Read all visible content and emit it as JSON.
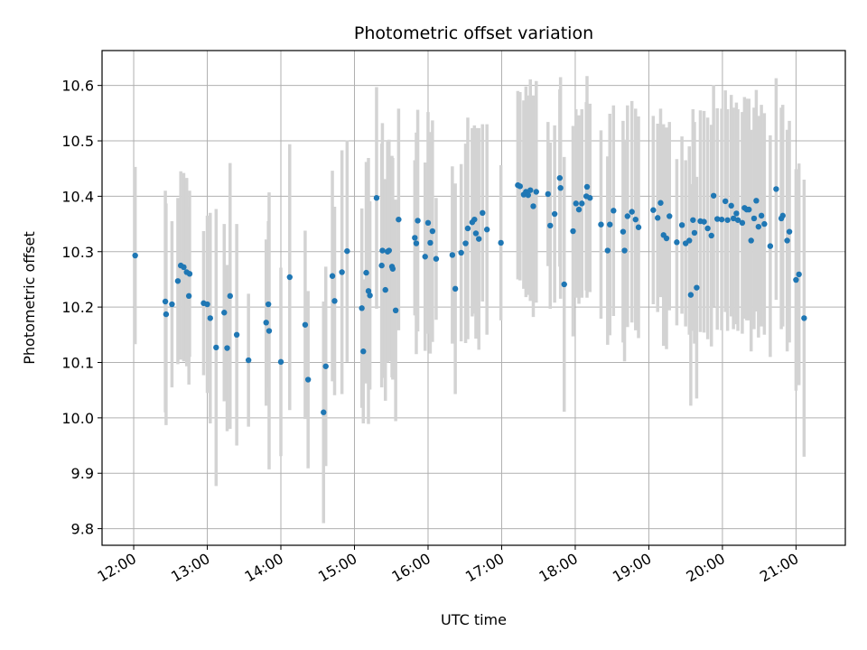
{
  "chart_data": {
    "type": "scatter",
    "title": "Photometric offset variation",
    "xlabel": "UTC time",
    "ylabel": "Photometric offset",
    "x_unit": "hours (UTC)",
    "xlim": [
      11.57,
      21.67
    ],
    "ylim": [
      9.77,
      10.663
    ],
    "grid": true,
    "colors": {
      "point": "#1f77b4",
      "errorbar": "#d3d3d3",
      "grid": "#b0b0b0"
    },
    "x_ticks": [
      {
        "value": 12,
        "label": "12:00"
      },
      {
        "value": 13,
        "label": "13:00"
      },
      {
        "value": 14,
        "label": "14:00"
      },
      {
        "value": 15,
        "label": "15:00"
      },
      {
        "value": 16,
        "label": "16:00"
      },
      {
        "value": 17,
        "label": "17:00"
      },
      {
        "value": 18,
        "label": "18:00"
      },
      {
        "value": 19,
        "label": "19:00"
      },
      {
        "value": 20,
        "label": "20:00"
      },
      {
        "value": 21,
        "label": "21:00"
      }
    ],
    "y_ticks": [
      {
        "value": 9.8,
        "label": "9.8"
      },
      {
        "value": 9.9,
        "label": "9.9"
      },
      {
        "value": 10.0,
        "label": "10.0"
      },
      {
        "value": 10.1,
        "label": "10.1"
      },
      {
        "value": 10.2,
        "label": "10.2"
      },
      {
        "value": 10.3,
        "label": "10.3"
      },
      {
        "value": 10.4,
        "label": "10.4"
      },
      {
        "value": 10.5,
        "label": "10.5"
      },
      {
        "value": 10.6,
        "label": "10.6"
      }
    ],
    "points": [
      [
        12.02,
        10.293,
        0.16
      ],
      [
        12.43,
        10.21,
        0.2
      ],
      [
        12.44,
        10.187,
        0.2
      ],
      [
        12.52,
        10.205,
        0.15
      ],
      [
        12.6,
        10.247,
        0.15
      ],
      [
        12.64,
        10.275,
        0.17
      ],
      [
        12.68,
        10.272,
        0.17
      ],
      [
        12.72,
        10.263,
        0.17
      ],
      [
        12.75,
        10.22,
        0.16
      ],
      [
        12.76,
        10.26,
        0.15
      ],
      [
        12.95,
        10.207,
        0.13
      ],
      [
        13.0,
        10.205,
        0.16
      ],
      [
        13.04,
        10.18,
        0.19
      ],
      [
        13.12,
        10.127,
        0.25
      ],
      [
        13.23,
        10.19,
        0.16
      ],
      [
        13.27,
        10.126,
        0.15
      ],
      [
        13.31,
        10.22,
        0.24
      ],
      [
        13.4,
        10.15,
        0.2
      ],
      [
        13.56,
        10.104,
        0.12
      ],
      [
        13.8,
        10.172,
        0.15
      ],
      [
        13.83,
        10.205,
        0.15
      ],
      [
        13.84,
        10.157,
        0.25
      ],
      [
        14.0,
        10.101,
        0.17
      ],
      [
        14.12,
        10.254,
        0.24
      ],
      [
        14.33,
        10.168,
        0.17
      ],
      [
        14.37,
        10.069,
        0.16
      ],
      [
        14.58,
        10.01,
        0.2
      ],
      [
        14.61,
        10.093,
        0.18
      ],
      [
        14.7,
        10.256,
        0.19
      ],
      [
        14.73,
        10.211,
        0.17
      ],
      [
        14.83,
        10.263,
        0.22
      ],
      [
        14.9,
        10.301,
        0.2
      ],
      [
        15.1,
        10.198,
        0.18
      ],
      [
        15.12,
        10.12,
        0.13
      ],
      [
        15.16,
        10.262,
        0.2
      ],
      [
        15.19,
        10.229,
        0.24
      ],
      [
        15.21,
        10.221,
        0.17
      ],
      [
        15.3,
        10.397,
        0.2
      ],
      [
        15.37,
        10.275,
        0.22
      ],
      [
        15.38,
        10.302,
        0.23
      ],
      [
        15.42,
        10.231,
        0.2
      ],
      [
        15.45,
        10.3,
        0.2
      ],
      [
        15.47,
        10.302,
        0.2
      ],
      [
        15.51,
        10.273,
        0.2
      ],
      [
        15.52,
        10.269,
        0.2
      ],
      [
        15.56,
        10.194,
        0.2
      ],
      [
        15.6,
        10.358,
        0.2
      ],
      [
        15.82,
        10.325,
        0.14
      ],
      [
        15.84,
        10.315,
        0.2
      ],
      [
        15.86,
        10.356,
        0.2
      ],
      [
        15.96,
        10.291,
        0.17
      ],
      [
        16.0,
        10.352,
        0.2
      ],
      [
        16.03,
        10.316,
        0.2
      ],
      [
        16.06,
        10.337,
        0.2
      ],
      [
        16.11,
        10.287,
        0.11
      ],
      [
        16.33,
        10.294,
        0.16
      ],
      [
        16.37,
        10.233,
        0.19
      ],
      [
        16.45,
        10.298,
        0.16
      ],
      [
        16.51,
        10.315,
        0.18
      ],
      [
        16.54,
        10.342,
        0.2
      ],
      [
        16.6,
        10.353,
        0.17
      ],
      [
        16.63,
        10.358,
        0.17
      ],
      [
        16.65,
        10.333,
        0.19
      ],
      [
        16.69,
        10.323,
        0.2
      ],
      [
        16.74,
        10.37,
        0.16
      ],
      [
        16.8,
        10.34,
        0.19
      ],
      [
        16.99,
        10.316,
        0.14
      ],
      [
        17.22,
        10.42,
        0.17
      ],
      [
        17.25,
        10.418,
        0.17
      ],
      [
        17.3,
        10.403,
        0.17
      ],
      [
        17.33,
        10.408,
        0.19
      ],
      [
        17.36,
        10.402,
        0.18
      ],
      [
        17.39,
        10.411,
        0.2
      ],
      [
        17.43,
        10.382,
        0.2
      ],
      [
        17.47,
        10.408,
        0.2
      ],
      [
        17.63,
        10.404,
        0.13
      ],
      [
        17.66,
        10.347,
        0.15
      ],
      [
        17.72,
        10.368,
        0.16
      ],
      [
        17.79,
        10.433,
        0.16
      ],
      [
        17.8,
        10.415,
        0.2
      ],
      [
        17.85,
        10.241,
        0.23
      ],
      [
        17.97,
        10.337,
        0.19
      ],
      [
        18.01,
        10.387,
        0.17
      ],
      [
        18.05,
        10.376,
        0.17
      ],
      [
        18.09,
        10.387,
        0.17
      ],
      [
        18.15,
        10.4,
        0.17
      ],
      [
        18.16,
        10.417,
        0.2
      ],
      [
        18.2,
        10.397,
        0.17
      ],
      [
        18.35,
        10.349,
        0.17
      ],
      [
        18.44,
        10.302,
        0.17
      ],
      [
        18.47,
        10.349,
        0.2
      ],
      [
        18.52,
        10.374,
        0.19
      ],
      [
        18.65,
        10.336,
        0.2
      ],
      [
        18.67,
        10.302,
        0.2
      ],
      [
        18.71,
        10.364,
        0.2
      ],
      [
        18.77,
        10.372,
        0.2
      ],
      [
        18.82,
        10.358,
        0.2
      ],
      [
        18.86,
        10.344,
        0.2
      ],
      [
        19.06,
        10.375,
        0.17
      ],
      [
        19.12,
        10.361,
        0.17
      ],
      [
        19.16,
        10.388,
        0.17
      ],
      [
        19.2,
        10.33,
        0.2
      ],
      [
        19.24,
        10.324,
        0.2
      ],
      [
        19.28,
        10.364,
        0.17
      ],
      [
        19.38,
        10.317,
        0.15
      ],
      [
        19.45,
        10.348,
        0.16
      ],
      [
        19.5,
        10.315,
        0.15
      ],
      [
        19.55,
        10.32,
        0.17
      ],
      [
        19.57,
        10.222,
        0.2
      ],
      [
        19.6,
        10.357,
        0.2
      ],
      [
        19.62,
        10.334,
        0.2
      ],
      [
        19.65,
        10.235,
        0.2
      ],
      [
        19.7,
        10.355,
        0.2
      ],
      [
        19.75,
        10.354,
        0.2
      ],
      [
        19.8,
        10.342,
        0.2
      ],
      [
        19.85,
        10.329,
        0.2
      ],
      [
        19.88,
        10.401,
        0.2
      ],
      [
        19.93,
        10.359,
        0.2
      ],
      [
        19.99,
        10.358,
        0.2
      ],
      [
        20.04,
        10.391,
        0.2
      ],
      [
        20.07,
        10.357,
        0.2
      ],
      [
        20.12,
        10.383,
        0.2
      ],
      [
        20.15,
        10.36,
        0.2
      ],
      [
        20.19,
        10.369,
        0.2
      ],
      [
        20.21,
        10.357,
        0.2
      ],
      [
        20.27,
        10.352,
        0.2
      ],
      [
        20.3,
        10.379,
        0.2
      ],
      [
        20.33,
        10.376,
        0.2
      ],
      [
        20.36,
        10.376,
        0.2
      ],
      [
        20.39,
        10.32,
        0.2
      ],
      [
        20.43,
        10.36,
        0.2
      ],
      [
        20.46,
        10.392,
        0.2
      ],
      [
        20.49,
        10.345,
        0.2
      ],
      [
        20.53,
        10.365,
        0.2
      ],
      [
        20.57,
        10.35,
        0.2
      ],
      [
        20.65,
        10.31,
        0.2
      ],
      [
        20.73,
        10.413,
        0.2
      ],
      [
        20.8,
        10.36,
        0.2
      ],
      [
        20.82,
        10.365,
        0.2
      ],
      [
        20.88,
        10.32,
        0.2
      ],
      [
        20.91,
        10.336,
        0.2
      ],
      [
        21.0,
        10.249,
        0.2
      ],
      [
        21.04,
        10.259,
        0.2
      ],
      [
        21.11,
        10.18,
        0.25
      ]
    ]
  }
}
